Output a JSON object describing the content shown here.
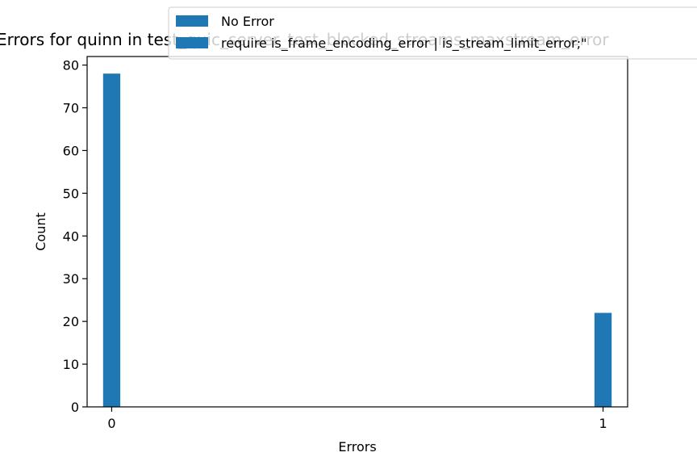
{
  "chart_data": {
    "type": "bar",
    "title": "Errors for quinn in test_quic_server_test_blocked_streams_maxstream_error",
    "xlabel": "Errors",
    "ylabel": "Count",
    "xlim": [
      -0.05,
      1.05
    ],
    "ylim": [
      0,
      82
    ],
    "xticks": [
      0,
      1
    ],
    "xtick_labels": [
      "0",
      "1"
    ],
    "yticks": [
      0,
      10,
      20,
      30,
      40,
      50,
      60,
      70,
      80
    ],
    "ytick_labels": [
      "0",
      "10",
      "20",
      "30",
      "40",
      "50",
      "60",
      "70",
      "80"
    ],
    "grid": false,
    "legend_placement": "top-right (above axes)",
    "series": [
      {
        "name": "No Error",
        "color": "#1f77b4",
        "x": [
          0
        ],
        "values": [
          78
        ]
      },
      {
        "name": "require is_frame_encoding_error | is_stream_limit_error;\"",
        "color": "#1f77b4",
        "x": [
          1
        ],
        "values": [
          22
        ]
      }
    ]
  }
}
